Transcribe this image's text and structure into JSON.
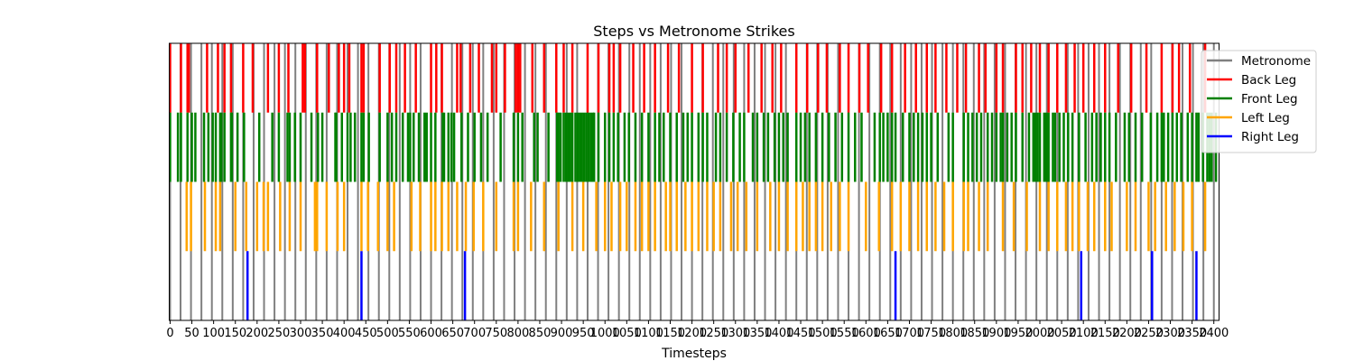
{
  "chart_data": {
    "type": "event-raster",
    "title": "Steps vs Metronome Strikes",
    "xlabel": "Timesteps",
    "ylabel": "",
    "xlim": [
      -2,
      2412
    ],
    "xticks": [
      0,
      50,
      100,
      150,
      200,
      250,
      300,
      350,
      400,
      450,
      500,
      550,
      600,
      650,
      700,
      750,
      800,
      850,
      900,
      950,
      1000,
      1050,
      1100,
      1150,
      1200,
      1250,
      1300,
      1350,
      1400,
      1450,
      1500,
      1550,
      1600,
      1650,
      1700,
      1750,
      1800,
      1850,
      1900,
      1950,
      2000,
      2050,
      2100,
      2150,
      2200,
      2250,
      2300,
      2350,
      2400
    ],
    "grid": false,
    "legend_position": "upper-right",
    "series": [
      {
        "name": "Metronome",
        "color": "#808080",
        "row": [
          0,
          4
        ],
        "events": [
          0,
          24,
          48,
          72,
          96,
          120,
          144,
          168,
          192,
          216,
          240,
          264,
          288,
          312,
          336,
          360,
          384,
          408,
          432,
          456,
          480,
          504,
          528,
          552,
          576,
          600,
          624,
          648,
          672,
          696,
          720,
          744,
          768,
          792,
          816,
          840,
          864,
          888,
          912,
          936,
          960,
          984,
          1008,
          1032,
          1056,
          1080,
          1104,
          1128,
          1152,
          1176,
          1200,
          1224,
          1248,
          1272,
          1296,
          1320,
          1344,
          1368,
          1392,
          1416,
          1440,
          1464,
          1488,
          1512,
          1536,
          1560,
          1584,
          1608,
          1632,
          1656,
          1680,
          1704,
          1728,
          1752,
          1776,
          1800,
          1824,
          1848,
          1872,
          1896,
          1920,
          1944,
          1968,
          1992,
          2016,
          2040,
          2064,
          2088,
          2112,
          2136,
          2160,
          2184,
          2208,
          2232,
          2256,
          2280,
          2304,
          2328,
          2352,
          2376,
          2400
        ]
      },
      {
        "name": "Back Leg",
        "color": "#ff0000",
        "row": [
          3,
          4
        ],
        "events": [
          0,
          25,
          40,
          43,
          85,
          110,
          125,
          140,
          168,
          190,
          225,
          250,
          272,
          305,
          310,
          338,
          365,
          388,
          400,
          412,
          440,
          445,
          482,
          505,
          520,
          540,
          565,
          600,
          612,
          625,
          660,
          668,
          690,
          710,
          740,
          750,
          770,
          795,
          800,
          805,
          833,
          860,
          888,
          905,
          925,
          960,
          985,
          1010,
          1020,
          1035,
          1065,
          1090,
          1115,
          1145,
          1170,
          1200,
          1225,
          1260,
          1280,
          1300,
          1330,
          1360,
          1385,
          1405,
          1440,
          1465,
          1490,
          1510,
          1540,
          1560,
          1585,
          1605,
          1635,
          1660,
          1690,
          1715,
          1740,
          1760,
          1785,
          1810,
          1830,
          1860,
          1875,
          1900,
          1915,
          1945,
          1960,
          1980,
          2000,
          2020,
          2040,
          2060,
          2080,
          2100,
          2125,
          2150,
          2180,
          2210,
          2245,
          2280,
          2305,
          2320,
          2345,
          2380
        ]
      },
      {
        "name": "Front Leg",
        "color": "#008000",
        "row": [
          2,
          3
        ],
        "events": [
          0,
          18,
          25,
          40,
          50,
          58,
          78,
          88,
          98,
          105,
          115,
          118,
          125,
          140,
          142,
          155,
          170,
          205,
          235,
          250,
          270,
          275,
          287,
          300,
          325,
          340,
          350,
          380,
          382,
          395,
          408,
          415,
          425,
          440,
          445,
          457,
          482,
          500,
          510,
          520,
          535,
          547,
          552,
          560,
          572,
          585,
          590,
          600,
          610,
          627,
          630,
          640,
          647,
          653,
          670,
          685,
          700,
          715,
          730,
          760,
          790,
          800,
          810,
          837,
          845,
          870,
          890,
          893,
          898,
          905,
          910,
          915,
          920,
          925,
          932,
          937,
          942,
          947,
          952,
          957,
          962,
          967,
          972,
          975,
          985,
          1000,
          1010,
          1020,
          1030,
          1045,
          1055,
          1070,
          1085,
          1100,
          1115,
          1125,
          1135,
          1150,
          1165,
          1180,
          1190,
          1200,
          1215,
          1225,
          1235,
          1255,
          1265,
          1280,
          1295,
          1310,
          1320,
          1340,
          1350,
          1365,
          1375,
          1390,
          1400,
          1410,
          1420,
          1440,
          1450,
          1460,
          1470,
          1485,
          1500,
          1515,
          1530,
          1545,
          1560,
          1575,
          1590,
          1620,
          1632,
          1640,
          1650,
          1660,
          1668,
          1685,
          1700,
          1710,
          1720,
          1730,
          1740,
          1750,
          1765,
          1790,
          1800,
          1825,
          1835,
          1845,
          1855,
          1865,
          1880,
          1890,
          1900,
          1910,
          1915,
          1925,
          1935,
          1945,
          1960,
          1975,
          1985,
          1990,
          1995,
          2000,
          2010,
          2015,
          2020,
          2030,
          2035,
          2045,
          2055,
          2065,
          2075,
          2090,
          2105,
          2120,
          2130,
          2140,
          2150,
          2160,
          2175,
          2195,
          2205,
          2220,
          2235,
          2255,
          2270,
          2280,
          2285,
          2295,
          2305,
          2315,
          2325,
          2340,
          2350,
          2360,
          2365,
          2375,
          2385,
          2390,
          2395,
          2405
        ]
      },
      {
        "name": "Left Leg",
        "color": "#ffa500",
        "row": [
          1,
          2
        ],
        "events": [
          38,
          48,
          80,
          105,
          115,
          150,
          175,
          200,
          215,
          225,
          253,
          275,
          300,
          333,
          338,
          360,
          385,
          400,
          440,
          455,
          478,
          500,
          515,
          555,
          575,
          600,
          610,
          625,
          640,
          660,
          680,
          698,
          720,
          750,
          790,
          800,
          830,
          860,
          893,
          925,
          950,
          980,
          1000,
          1015,
          1035,
          1050,
          1070,
          1085,
          1100,
          1115,
          1140,
          1150,
          1165,
          1185,
          1200,
          1215,
          1235,
          1250,
          1265,
          1290,
          1305,
          1325,
          1350,
          1380,
          1400,
          1420,
          1440,
          1455,
          1470,
          1485,
          1500,
          1520,
          1540,
          1560,
          1600,
          1630,
          1660,
          1680,
          1700,
          1720,
          1740,
          1760,
          1780,
          1800,
          1825,
          1835,
          1860,
          1880,
          1915,
          1940,
          1970,
          2000,
          2020,
          2040,
          2060,
          2075,
          2090,
          2110,
          2125,
          2150,
          2165,
          2200,
          2220,
          2250,
          2265,
          2290,
          2310,
          2330,
          2350,
          2380
        ]
      },
      {
        "name": "Right Leg",
        "color": "#0000ff",
        "row": [
          0,
          1
        ],
        "events": [
          178,
          440,
          678,
          1668,
          2095,
          2258,
          2360
        ]
      }
    ]
  }
}
